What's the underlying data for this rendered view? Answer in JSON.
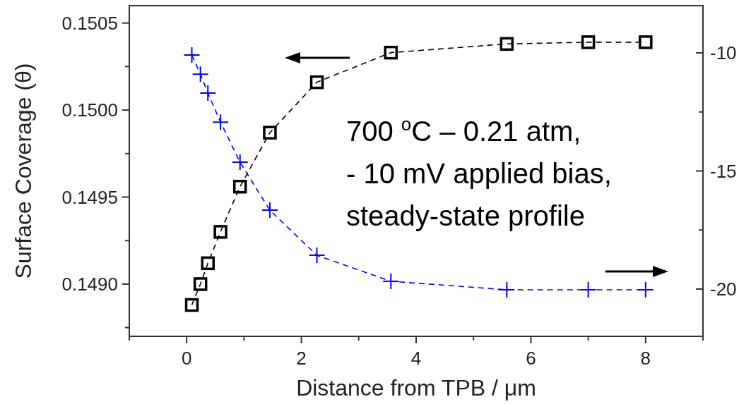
{
  "chart_data": {
    "type": "line",
    "xlabel": "Distance from TPB / μm",
    "ylabel": "Surface Coverage (θ)",
    "xlim": [
      -1,
      9
    ],
    "xticks": [
      {
        "value": -1,
        "label": null
      },
      0,
      {
        "value": 1,
        "label": null
      },
      2,
      {
        "value": 3,
        "label": null
      },
      4,
      {
        "value": 5,
        "label": null
      },
      6,
      {
        "value": 7,
        "label": null
      },
      8,
      {
        "value": 9,
        "label": null
      }
    ],
    "ylim": [
      0.1487,
      0.1506
    ],
    "yticks": [
      {
        "value": 0.14875,
        "label": null
      },
      {
        "value": 0.149,
        "label": "0.1490"
      },
      {
        "value": 0.14925,
        "label": null
      },
      0.1495,
      {
        "value": 0.14975,
        "label": null
      },
      {
        "value": 0.15,
        "label": "0.1500"
      },
      {
        "value": 0.15025,
        "label": null
      },
      0.1505
    ],
    "y2lim": [
      -22,
      -8
    ],
    "y2ticks": [
      -20,
      {
        "value": -17.5,
        "label": null
      },
      -15,
      {
        "value": -12.5,
        "label": null
      },
      -10
    ],
    "x": [
      0.09,
      0.24,
      0.37,
      0.59,
      0.93,
      1.45,
      2.27,
      3.56,
      5.58,
      7.0,
      8.0
    ],
    "series": [
      {
        "color": "#000000",
        "marker": "square",
        "line_style": "dashed",
        "values": [
          0.14888,
          0.149,
          0.14912,
          0.1493,
          0.14956,
          0.14987,
          0.15016,
          0.15033,
          0.15038,
          0.15039,
          0.15039
        ]
      },
      {
        "axis": "y2",
        "color": "#0000ff",
        "marker": "cross",
        "line_style": "dashed",
        "values": [
          -10.09,
          -10.9,
          -11.7,
          -12.93,
          -14.63,
          -16.66,
          -18.57,
          -19.67,
          -20.03,
          -20.03,
          -20.03
        ]
      }
    ],
    "annotations": [
      "700 $^{o}$C – 0.21 atm,",
      "- 10 mV applied bias,",
      "steady-state profile"
    ],
    "grid": false
  }
}
